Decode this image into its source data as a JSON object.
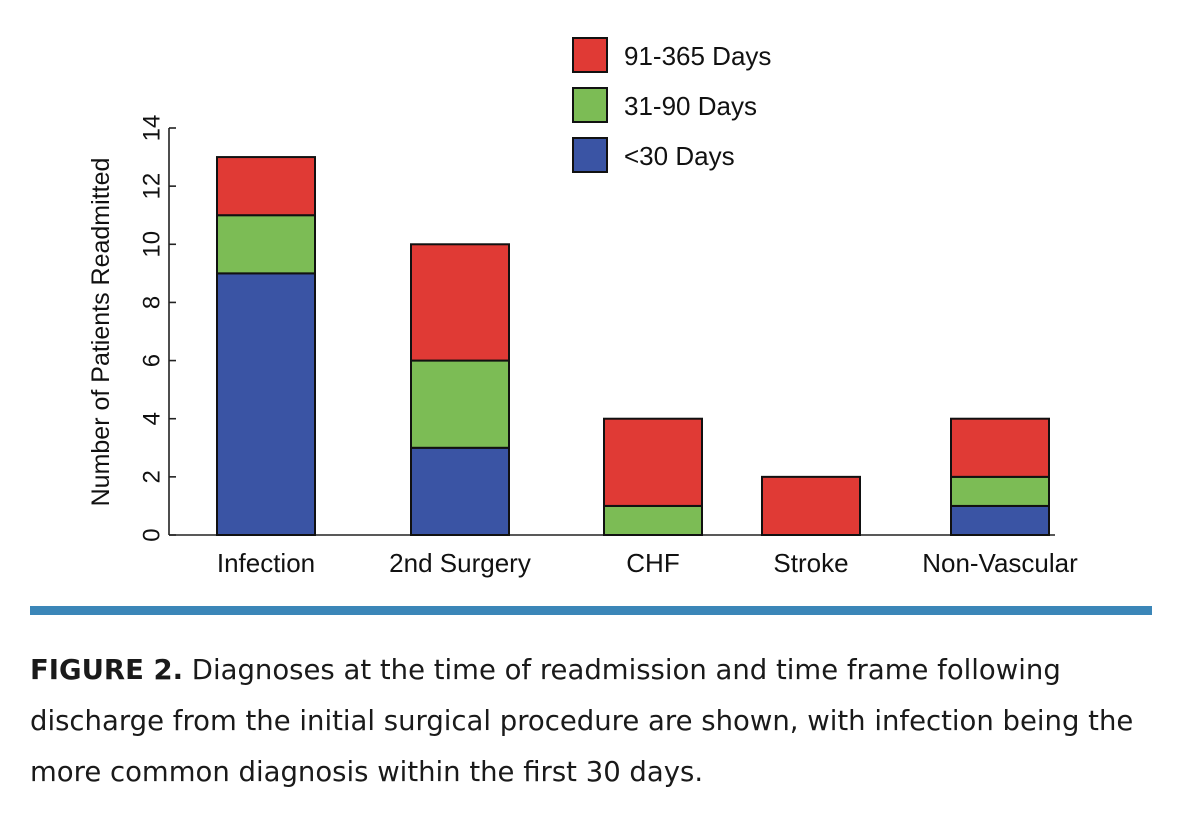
{
  "chart_data": {
    "type": "bar",
    "stacked": true,
    "categories": [
      "Infection",
      "2nd Surgery",
      "CHF",
      "Stroke",
      "Non-Vascular"
    ],
    "series": [
      {
        "name": "<30 Days",
        "color": "#3a54a4",
        "values": [
          9,
          3,
          0,
          0,
          1
        ]
      },
      {
        "name": "31-90 Days",
        "color": "#7cbc55",
        "values": [
          2,
          3,
          1,
          0,
          1
        ]
      },
      {
        "name": "91-365 Days",
        "color": "#e03a35",
        "values": [
          2,
          4,
          3,
          2,
          2
        ]
      }
    ],
    "ylabel": "Number of Patients Readmitted",
    "xlabel": "",
    "ylim": [
      0,
      14
    ],
    "yticks": [
      0,
      2,
      4,
      6,
      8,
      10,
      12,
      14
    ],
    "legend": {
      "placement": "top-right",
      "order": [
        "91-365 Days",
        "31-90 Days",
        "<30 Days"
      ]
    },
    "grid": false
  },
  "caption": {
    "label": "FIGURE 2.",
    "text": "Diagnoses at the time of readmission and time frame following discharge from the initial surgical procedure are shown, with infection being the more common diagnosis within the first 30 days."
  },
  "colors": {
    "rule": "#3b86b8"
  }
}
